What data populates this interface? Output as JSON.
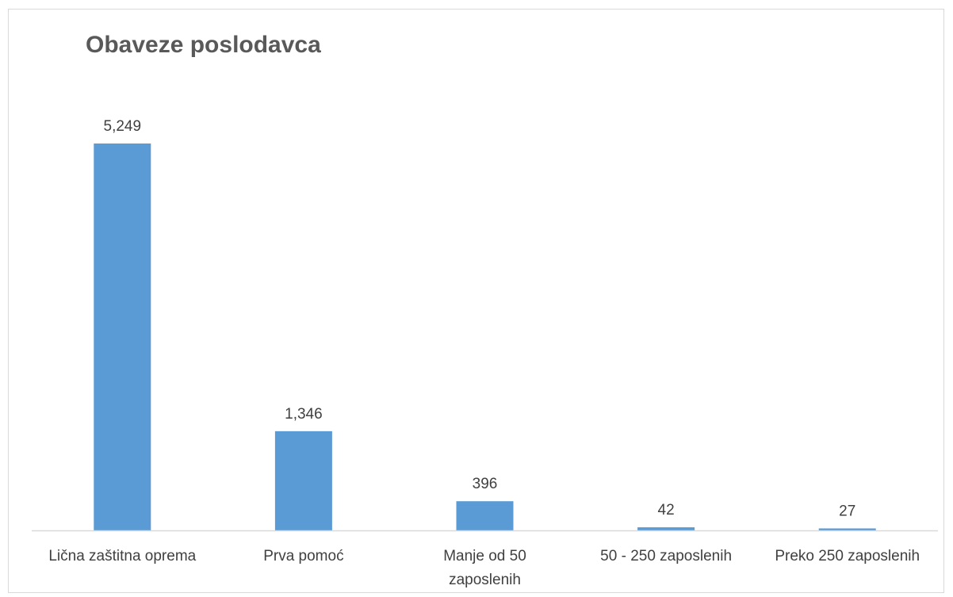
{
  "chart_data": {
    "type": "bar",
    "title": "Obaveze poslodavca",
    "categories": [
      [
        "Lična zaštitna oprema"
      ],
      [
        "Prva pomoć"
      ],
      [
        "Manje od 50",
        "zaposlenih"
      ],
      [
        "50 - 250 zaposlenih"
      ],
      [
        "Preko 250 zaposlenih"
      ]
    ],
    "values": [
      5249,
      1346,
      396,
      42,
      27
    ],
    "value_labels": [
      "5,249",
      "1,346",
      "396",
      "42",
      "27"
    ],
    "xlabel": "",
    "ylabel": "",
    "ylim": [
      0,
      5249
    ],
    "grid": false,
    "legend": "none",
    "colors": {
      "bar": "#5b9bd5",
      "axis": "#d9d9d9",
      "text": "#404040",
      "title": "#595959"
    }
  }
}
